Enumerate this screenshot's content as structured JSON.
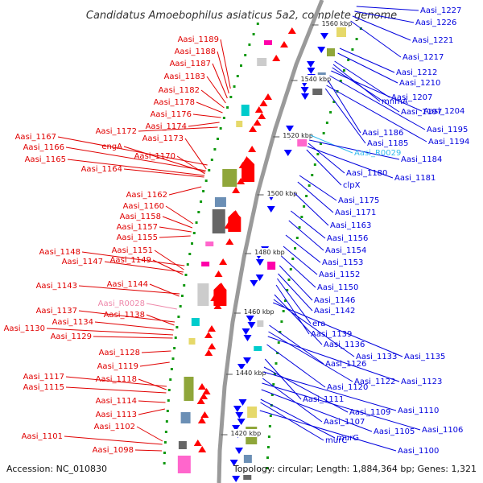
{
  "title": "Candidatus Amoebophilus asiaticus 5a2, complete genome",
  "footer": {
    "accession": "Accession: NC_010830",
    "summary": "Topology: circular; Length: 1,884,364 bp; Genes: 1,321"
  },
  "colors": {
    "forward_label": "#e00000",
    "reverse_label": "#0000dd",
    "rna_forward_label": "#ee88aa",
    "rna_reverse_label": "#33bbee",
    "backbone": "#999999",
    "forward_feature": "#ff0000",
    "reverse_feature": "#0000ff"
  },
  "kbp_ticks": [
    "1560 kbp",
    "1540 kbp",
    "1520 kbp",
    "1500 kbp",
    "1480 kbp",
    "1460 kbp",
    "1440 kbp",
    "1420 kbp"
  ],
  "left_labels": [
    "Aasi_1189",
    "Aasi_1188",
    "Aasi_1187",
    "Aasi_1183",
    "Aasi_1182",
    "Aasi_1178",
    "Aasi_1176",
    "Aasi_1174",
    "Aasi_1172",
    "Aasi_1167",
    "Aasi_1173",
    "Aasi_1166",
    "engA",
    "Aasi_1170",
    "Aasi_1165",
    "Aasi_1164",
    "Aasi_1162",
    "Aasi_1160",
    "Aasi_1158",
    "Aasi_1157",
    "Aasi_1155",
    "Aasi_1148",
    "Aasi_1151",
    "Aasi_1147",
    "Aasi_1149",
    "Aasi_1143",
    "Aasi_1144",
    "Aasi_R0028",
    "Aasi_1137",
    "Aasi_1138",
    "Aasi_1134",
    "Aasi_1130",
    "Aasi_1129",
    "Aasi_1128",
    "Aasi_1119",
    "Aasi_1117",
    "Aasi_1118",
    "Aasi_1115",
    "Aasi_1114",
    "Aasi_1113",
    "Aasi_1102",
    "Aasi_1101",
    "Aasi_1098"
  ],
  "right_labels": [
    "Aasi_1227",
    "Aasi_1226",
    "Aasi_1221",
    "Aasi_1217",
    "Aasi_1212",
    "Aasi_1210",
    "Aasi_1207",
    "mnmA",
    "Aasi_1197",
    "Aasi_1204",
    "Aasi_1195",
    "Aasi_1186",
    "Aasi_1194",
    "Aasi_1185",
    "Aasi_R0029",
    "Aasi_1184",
    "Aasi_1180",
    "Aasi_1181",
    "clpX",
    "Aasi_1175",
    "Aasi_1171",
    "Aasi_1163",
    "Aasi_1156",
    "Aasi_1154",
    "Aasi_1153",
    "Aasi_1152",
    "Aasi_1150",
    "Aasi_1146",
    "Aasi_1142",
    "era",
    "Aasi_1139",
    "Aasi_1136",
    "Aasi_1133",
    "Aasi_1135",
    "Aasi_1126",
    "Aasi_1122",
    "Aasi_1123",
    "Aasi_1120",
    "Aasi_1111",
    "Aasi_1109",
    "Aasi_1110",
    "Aasi_1107",
    "Aasi_1106",
    "Aasi_1105",
    "murG",
    "murC",
    "Aasi_1100"
  ]
}
